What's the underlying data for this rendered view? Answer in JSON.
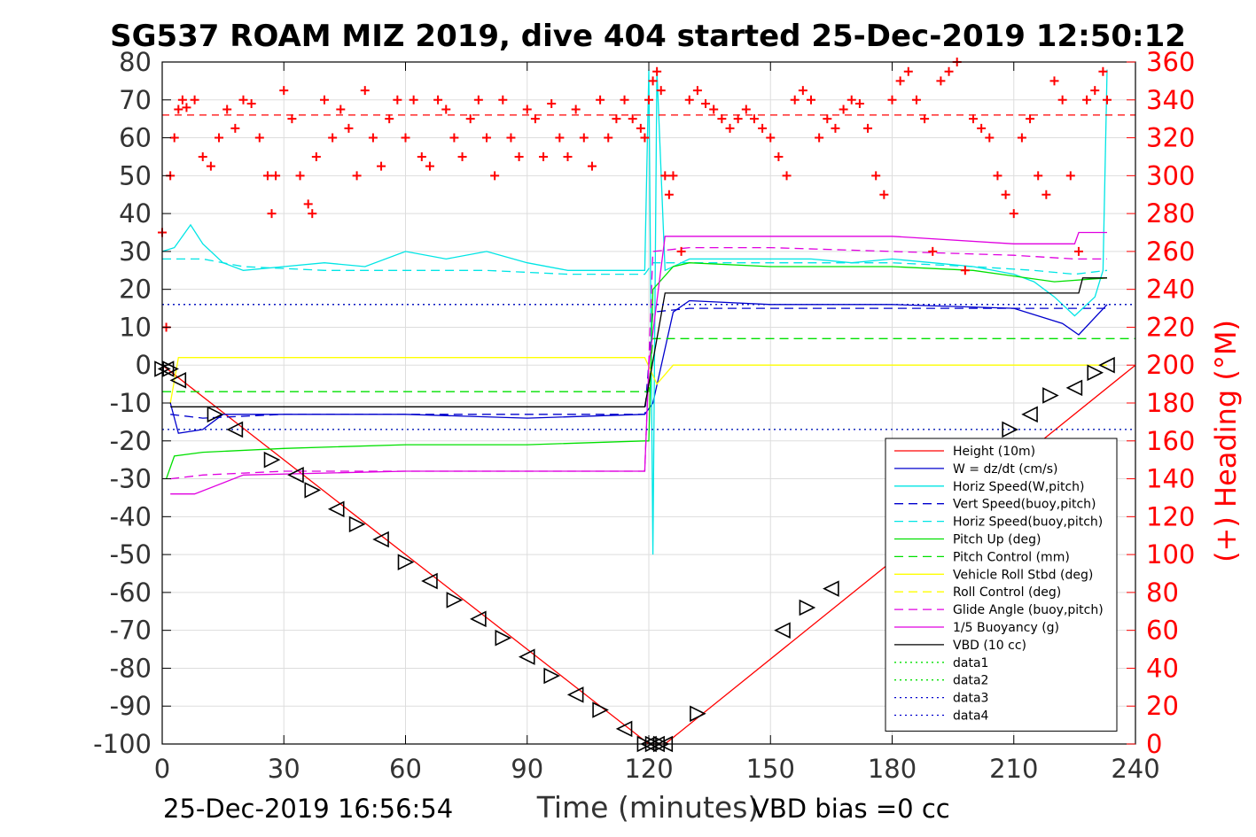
{
  "chart_data": {
    "type": "line",
    "title": "SG537 ROAM MIZ 2019, dive 404 started 25-Dec-2019 12:50:12",
    "xlabel": "Time (minutes)",
    "ylabel_left": "",
    "ylabel_right": "(+) Heading (°M)",
    "xlim": [
      0,
      240
    ],
    "ylim_left": [
      -100,
      80
    ],
    "ylim_right": [
      0,
      360
    ],
    "x_ticks": [
      0,
      30,
      60,
      90,
      120,
      150,
      180,
      210,
      240
    ],
    "y_ticks_left": [
      -100,
      -90,
      -80,
      -70,
      -60,
      -50,
      -40,
      -30,
      -20,
      -10,
      0,
      10,
      20,
      30,
      40,
      50,
      60,
      70,
      80
    ],
    "y_ticks_right": [
      0,
      20,
      40,
      60,
      80,
      100,
      120,
      140,
      160,
      180,
      200,
      220,
      240,
      260,
      280,
      300,
      320,
      340,
      360
    ],
    "grid": true,
    "legend_position": "bottom-right",
    "colors": {
      "height": "#ff0000",
      "w": "#0000cd",
      "horiz_speed": "#00e5e5",
      "pitch": "#00e000",
      "roll": "#ffff00",
      "glide": "#e000e0",
      "vbd": "#000000",
      "heading": "#ff0000"
    },
    "legend": [
      {
        "name": "Height (10m)",
        "color": "#ff0000",
        "dash": ""
      },
      {
        "name": "W = dz/dt (cm/s)",
        "color": "#0000cd",
        "dash": ""
      },
      {
        "name": "Horiz Speed(W,pitch)",
        "color": "#00e5e5",
        "dash": ""
      },
      {
        "name": "Vert Speed(buoy,pitch)",
        "color": "#0000cd",
        "dash": "10,6"
      },
      {
        "name": "Horiz Speed(buoy,pitch)",
        "color": "#00e5e5",
        "dash": "10,6"
      },
      {
        "name": "Pitch Up (deg)",
        "color": "#00e000",
        "dash": ""
      },
      {
        "name": "Pitch Control (mm)",
        "color": "#00e000",
        "dash": "10,6"
      },
      {
        "name": "Vehicle Roll Stbd (deg)",
        "color": "#ffff00",
        "dash": ""
      },
      {
        "name": "Roll Control (deg)",
        "color": "#ffff00",
        "dash": "10,6"
      },
      {
        "name": "Glide Angle (buoy,pitch)",
        "color": "#e000e0",
        "dash": "10,6"
      },
      {
        "name": "1/5 Buoyancy (g)",
        "color": "#e000e0",
        "dash": ""
      },
      {
        "name": "VBD (10 cc)",
        "color": "#000000",
        "dash": ""
      },
      {
        "name": "data1",
        "color": "#00e000",
        "dash": "2,4"
      },
      {
        "name": "data2",
        "color": "#00e000",
        "dash": "2,4"
      },
      {
        "name": "data3",
        "color": "#0000cd",
        "dash": "2,4"
      },
      {
        "name": "data4",
        "color": "#0000cd",
        "dash": "2,4"
      }
    ],
    "series": [
      {
        "name": "Height (10m)",
        "axis": "left",
        "x": [
          0,
          120,
          124,
          240
        ],
        "y": [
          0,
          -100,
          -100,
          0
        ]
      },
      {
        "name": "W = dz/dt (cm/s)",
        "axis": "left",
        "x": [
          2,
          4,
          10,
          15,
          30,
          60,
          90,
          119,
          121,
          126,
          130,
          150,
          180,
          210,
          222,
          226,
          233
        ],
        "y": [
          -10,
          -18,
          -17,
          -13,
          -13,
          -13,
          -14,
          -13,
          -10,
          14,
          17,
          16,
          16,
          15,
          11,
          8,
          16
        ]
      },
      {
        "name": "Vert Speed(buoy,pitch)",
        "axis": "left",
        "x": [
          2,
          10,
          30,
          60,
          90,
          119,
          121,
          130,
          150,
          180,
          210,
          230,
          233
        ],
        "y": [
          -13,
          -14,
          -13,
          -13,
          -13,
          -13,
          14,
          15,
          15,
          15,
          15,
          15,
          15
        ]
      },
      {
        "name": "Horiz Speed(W,pitch)",
        "axis": "left",
        "x": [
          0,
          3,
          7,
          10,
          15,
          20,
          30,
          40,
          50,
          60,
          70,
          80,
          90,
          100,
          110,
          119,
          120,
          121,
          122,
          124,
          130,
          140,
          150,
          160,
          170,
          180,
          190,
          200,
          210,
          215,
          220,
          225,
          230,
          232,
          233
        ],
        "y": [
          30,
          31,
          37,
          32,
          27,
          25,
          26,
          27,
          26,
          30,
          28,
          30,
          27,
          25,
          25,
          25,
          78,
          -50,
          78,
          25,
          28,
          28,
          28,
          28,
          27,
          28,
          27,
          26,
          24,
          22,
          18,
          13,
          18,
          25,
          78
        ]
      },
      {
        "name": "Horiz Speed(buoy,pitch)",
        "axis": "left",
        "x": [
          0,
          10,
          20,
          40,
          60,
          80,
          100,
          119,
          121,
          130,
          150,
          180,
          200,
          215,
          225,
          233
        ],
        "y": [
          28,
          28,
          26,
          25,
          25,
          25,
          24,
          24,
          27,
          27,
          27,
          27,
          26,
          25,
          24,
          25
        ]
      },
      {
        "name": "Pitch Up (deg)",
        "axis": "left",
        "x": [
          1,
          3,
          10,
          30,
          60,
          90,
          119,
          120,
          121,
          126,
          130,
          150,
          180,
          200,
          220,
          233
        ],
        "y": [
          -30,
          -24,
          -23,
          -22,
          -21,
          -21,
          -20,
          -20,
          20,
          26,
          27,
          26,
          26,
          25,
          22,
          23
        ]
      },
      {
        "name": "Pitch Control (mm)",
        "axis": "left",
        "x": [
          0,
          120,
          121,
          240
        ],
        "y": [
          -7,
          -7,
          7,
          7
        ]
      },
      {
        "name": "Vehicle Roll Stbd (deg)",
        "axis": "left",
        "x": [
          2,
          4,
          30,
          60,
          90,
          119,
          122,
          126,
          150,
          180,
          210,
          233
        ],
        "y": [
          -10,
          2,
          2,
          2,
          2,
          2,
          -5,
          0,
          0,
          0,
          0,
          0
        ]
      },
      {
        "name": "Glide Angle (buoy,pitch)",
        "axis": "left",
        "x": [
          2,
          10,
          30,
          60,
          90,
          119,
          121,
          130,
          150,
          180,
          210,
          225,
          233
        ],
        "y": [
          -30,
          -29,
          -28,
          -28,
          -28,
          -28,
          30,
          31,
          31,
          30,
          29,
          28,
          28
        ]
      },
      {
        "name": "1/5 Buoyancy (g)",
        "axis": "left",
        "x": [
          2,
          8,
          20,
          60,
          90,
          119,
          120,
          124,
          130,
          150,
          180,
          210,
          225,
          226,
          233
        ],
        "y": [
          -34,
          -34,
          -29,
          -28,
          -28,
          -28,
          0,
          34,
          34,
          34,
          34,
          32,
          32,
          35,
          35
        ]
      },
      {
        "name": "VBD (10 cc)",
        "axis": "left",
        "x": [
          2,
          5,
          60,
          119,
          124,
          125,
          226,
          227,
          233
        ],
        "y": [
          -11,
          -11,
          -11,
          -11,
          19,
          19,
          19,
          23,
          23
        ]
      },
      {
        "name": "data1",
        "axis": "left",
        "x": [
          0,
          240
        ],
        "y": [
          16,
          16
        ]
      },
      {
        "name": "data2",
        "axis": "left",
        "x": [
          0,
          240
        ],
        "y": [
          -17,
          -17
        ]
      },
      {
        "name": "data3",
        "axis": "left",
        "x": [
          0,
          240
        ],
        "y": [
          16,
          16
        ]
      },
      {
        "name": "data4",
        "axis": "left",
        "x": [
          0,
          240
        ],
        "y": [
          -17,
          -17
        ]
      },
      {
        "name": "Heading reference",
        "axis": "right",
        "x": [
          0,
          240
        ],
        "y": [
          332,
          332
        ]
      }
    ],
    "heading_points": {
      "x": [
        0,
        1,
        2,
        3,
        4,
        5,
        6,
        8,
        10,
        12,
        14,
        16,
        18,
        20,
        22,
        24,
        26,
        27,
        28,
        30,
        32,
        34,
        36,
        37,
        38,
        40,
        42,
        44,
        46,
        48,
        50,
        52,
        54,
        56,
        58,
        60,
        62,
        64,
        66,
        68,
        70,
        72,
        74,
        76,
        78,
        80,
        82,
        84,
        86,
        88,
        90,
        92,
        94,
        96,
        98,
        100,
        102,
        104,
        106,
        108,
        110,
        112,
        114,
        116,
        118,
        119,
        120,
        121,
        122,
        123,
        124,
        125,
        126,
        128,
        130,
        132,
        134,
        136,
        138,
        140,
        142,
        144,
        146,
        148,
        150,
        152,
        154,
        156,
        158,
        160,
        162,
        164,
        166,
        168,
        170,
        172,
        174,
        176,
        178,
        180,
        182,
        184,
        186,
        188,
        190,
        192,
        194,
        196,
        198,
        200,
        202,
        204,
        206,
        208,
        210,
        212,
        214,
        216,
        218,
        220,
        222,
        224,
        226,
        228,
        230,
        232,
        233
      ],
      "y": [
        270,
        220,
        300,
        320,
        335,
        340,
        336,
        340,
        310,
        305,
        320,
        335,
        325,
        340,
        338,
        320,
        300,
        280,
        300,
        345,
        330,
        300,
        285,
        280,
        310,
        340,
        320,
        335,
        325,
        300,
        345,
        320,
        305,
        330,
        340,
        320,
        340,
        310,
        305,
        340,
        335,
        320,
        310,
        330,
        340,
        320,
        300,
        340,
        320,
        310,
        335,
        330,
        310,
        338,
        320,
        310,
        335,
        320,
        305,
        340,
        320,
        330,
        340,
        330,
        325,
        320,
        340,
        350,
        355,
        345,
        300,
        290,
        300,
        260,
        340,
        345,
        338,
        335,
        330,
        325,
        330,
        335,
        330,
        325,
        320,
        310,
        300,
        340,
        345,
        340,
        320,
        330,
        325,
        335,
        340,
        338,
        325,
        300,
        290,
        340,
        350,
        355,
        340,
        330,
        260,
        350,
        355,
        360,
        250,
        330,
        325,
        320,
        300,
        290,
        280,
        320,
        330,
        300,
        290,
        350,
        340,
        300,
        260,
        340,
        345,
        355,
        340
      ]
    },
    "depth_markers": {
      "x": [
        0,
        1,
        2,
        4,
        13,
        18,
        27,
        33,
        37,
        43,
        48,
        54,
        60,
        66,
        72,
        78,
        84,
        90,
        96,
        102,
        108,
        114,
        119,
        120,
        121,
        122,
        123,
        124,
        132,
        153,
        159,
        165,
        209,
        214,
        219,
        225,
        230,
        233
      ],
      "y": [
        -1,
        -1,
        -1,
        -4,
        -13,
        -17,
        -25,
        -29,
        -33,
        -38,
        -42,
        -46,
        -52,
        -57,
        -62,
        -67,
        -72,
        -77,
        -82,
        -87,
        -91,
        -96,
        -100,
        -100,
        -100,
        -100,
        -100,
        -100,
        -92,
        -70,
        -64,
        -59,
        -17,
        -13,
        -8,
        -6,
        -2,
        0
      ]
    }
  },
  "footer": {
    "time": "25-Dec-2019 16:56:54",
    "vbd_bias": "VBD bias =0 cc"
  }
}
